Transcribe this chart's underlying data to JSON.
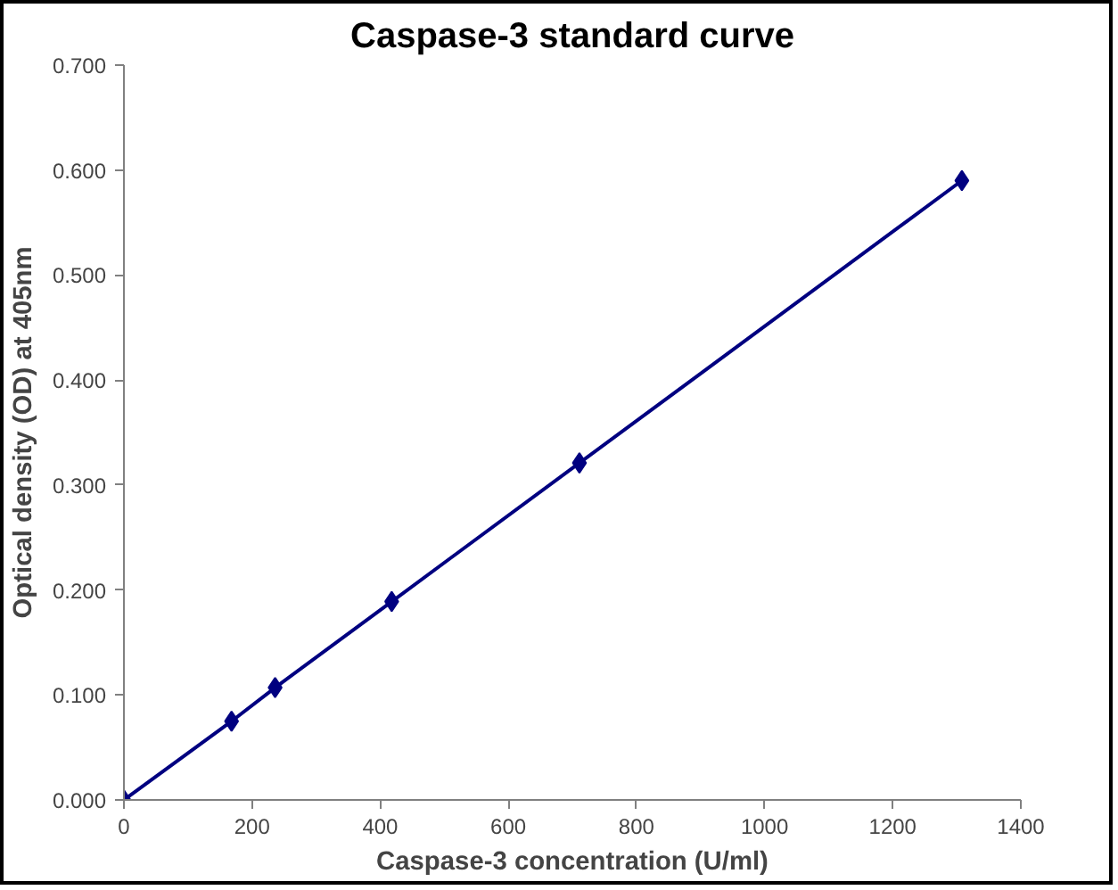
{
  "chart_data": {
    "type": "line",
    "title": "Caspase-3 standard curve",
    "xlabel": "Caspase-3 concentration (U/ml)",
    "ylabel": "Optical density (OD) at 405nm",
    "x": [
      0,
      168,
      236,
      418,
      711,
      1308
    ],
    "series": [
      {
        "color": "#000080",
        "values": [
          0,
          0.075,
          0.107,
          0.189,
          0.321,
          0.59
        ]
      }
    ],
    "xlim": [
      0,
      1400
    ],
    "xticks": [
      0,
      200,
      400,
      600,
      800,
      1000,
      1200,
      1400
    ],
    "ylim": [
      0,
      0.7
    ],
    "yticks": [
      {
        "value": 0,
        "label": "0.000"
      },
      {
        "value": 0.1,
        "label": "0.100"
      },
      {
        "value": 0.2,
        "label": "0.200"
      },
      {
        "value": 0.3,
        "label": "0.300"
      },
      {
        "value": 0.4,
        "label": "0.400"
      },
      {
        "value": 0.5,
        "label": "0.500"
      },
      {
        "value": 0.6,
        "label": "0.600"
      },
      {
        "value": 0.7,
        "label": "0.700"
      }
    ],
    "grid": false,
    "marker": "diamond",
    "line_style": "solid"
  }
}
